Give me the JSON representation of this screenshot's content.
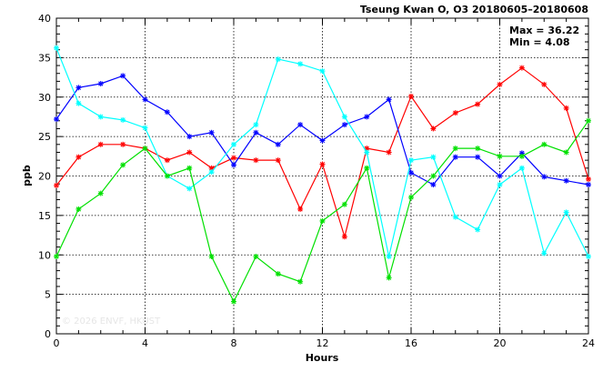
{
  "header": {
    "title": "Tseung Kwan O, O3 20180605–20180608",
    "max_text": "Max = 36.22",
    "min_text": "Min =  4.08"
  },
  "watermark": "© 2026  ENVF, HKUST",
  "chart_data": {
    "type": "line",
    "title": "Tseung Kwan O, O3 20180605–20180608",
    "xlabel": "Hours",
    "ylabel": "ppb",
    "xlim": [
      0,
      24
    ],
    "ylim": [
      0,
      40
    ],
    "xticks": [
      0,
      4,
      8,
      12,
      16,
      20,
      24
    ],
    "yticks": [
      0,
      5,
      10,
      15,
      20,
      25,
      30,
      35,
      40
    ],
    "grid": true,
    "x": [
      0,
      1,
      2,
      3,
      4,
      5,
      6,
      7,
      8,
      9,
      10,
      11,
      12,
      13,
      14,
      15,
      16,
      17,
      18,
      19,
      20,
      21,
      22,
      23,
      24
    ],
    "series": [
      {
        "color": "#ff0000",
        "values": [
          18.8,
          22.4,
          24.0,
          24.0,
          23.5,
          22.0,
          23.0,
          21.0,
          22.3,
          22.0,
          22.0,
          15.8,
          21.5,
          12.3,
          23.5,
          23.0,
          30.1,
          26.0,
          28.0,
          29.1,
          31.6,
          33.7,
          31.6,
          28.6,
          19.6
        ]
      },
      {
        "color": "#0000ff",
        "values": [
          27.2,
          31.2,
          31.7,
          32.7,
          29.7,
          28.1,
          25.0,
          25.5,
          21.4,
          25.5,
          24.0,
          26.5,
          24.5,
          26.5,
          27.5,
          29.7,
          20.4,
          18.9,
          22.4,
          22.4,
          20.0,
          22.9,
          19.9,
          19.4,
          18.9
        ]
      },
      {
        "color": "#00ffff",
        "values": [
          36.22,
          29.2,
          27.5,
          27.1,
          26.1,
          20.0,
          18.4,
          20.5,
          24.0,
          26.5,
          34.8,
          34.2,
          33.3,
          27.5,
          23.0,
          9.8,
          22.0,
          22.4,
          14.8,
          13.2,
          18.9,
          21.0,
          10.2,
          15.4,
          9.8
        ]
      },
      {
        "color": "#00e000",
        "values": [
          9.8,
          15.8,
          17.8,
          21.4,
          23.5,
          20.0,
          21.0,
          9.8,
          4.08,
          9.8,
          7.6,
          6.6,
          14.3,
          16.4,
          21.0,
          7.1,
          17.3,
          20.0,
          23.5,
          23.5,
          22.5,
          22.5,
          24.0,
          23.0,
          27.0
        ]
      }
    ]
  }
}
